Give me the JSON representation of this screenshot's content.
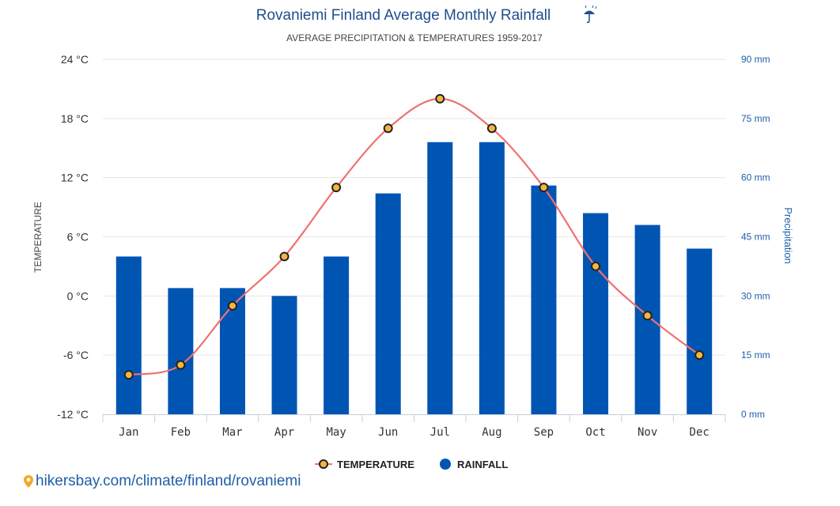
{
  "chart_data": {
    "type": "bar+line",
    "title": "Rovaniemi Finland Average Monthly Rainfall",
    "title_icon": "umbrella-rain-icon",
    "subtitle": "AVERAGE PRECIPITATION & TEMPERATURES 1959-2017",
    "categories": [
      "Jan",
      "Feb",
      "Mar",
      "Apr",
      "May",
      "Jun",
      "Jul",
      "Aug",
      "Sep",
      "Oct",
      "Nov",
      "Dec"
    ],
    "series": [
      {
        "name": "TEMPERATURE",
        "type": "line",
        "axis": "left",
        "unit": "°C",
        "values": [
          -8,
          -7,
          -1,
          4,
          11,
          17,
          20,
          17,
          11,
          3,
          -2,
          -6
        ],
        "color": "#f07070",
        "marker_fill": "#f5b53f",
        "marker_stroke": "#222222"
      },
      {
        "name": "RAINFALL",
        "type": "bar",
        "axis": "right",
        "unit": "mm",
        "values": [
          40,
          32,
          32,
          30,
          40,
          56,
          69,
          69,
          58,
          51,
          48,
          42
        ],
        "color": "#0055b3"
      }
    ],
    "y_left": {
      "label": "TEMPERATURE",
      "range": [
        -12,
        24
      ],
      "ticks": [
        -12,
        -6,
        0,
        6,
        12,
        18,
        24
      ],
      "tick_labels": [
        "-12 °C",
        "-6 °C",
        "0 °C",
        "6 °C",
        "12 °C",
        "18 °C",
        "24 °C"
      ]
    },
    "y_right": {
      "label": "Precipitation",
      "range": [
        0,
        90
      ],
      "ticks": [
        0,
        15,
        30,
        45,
        60,
        75,
        90
      ],
      "tick_labels": [
        "0 mm",
        "15 mm",
        "30 mm",
        "45 mm",
        "60 mm",
        "75 mm",
        "90 mm"
      ]
    },
    "grid": true,
    "legend": {
      "placement": "bottom-center",
      "items": [
        "TEMPERATURE",
        "RAINFALL"
      ]
    }
  },
  "source": {
    "text": "hikersbay.com/climate/finland/rovaniemi",
    "icon": "location-pin-icon"
  }
}
